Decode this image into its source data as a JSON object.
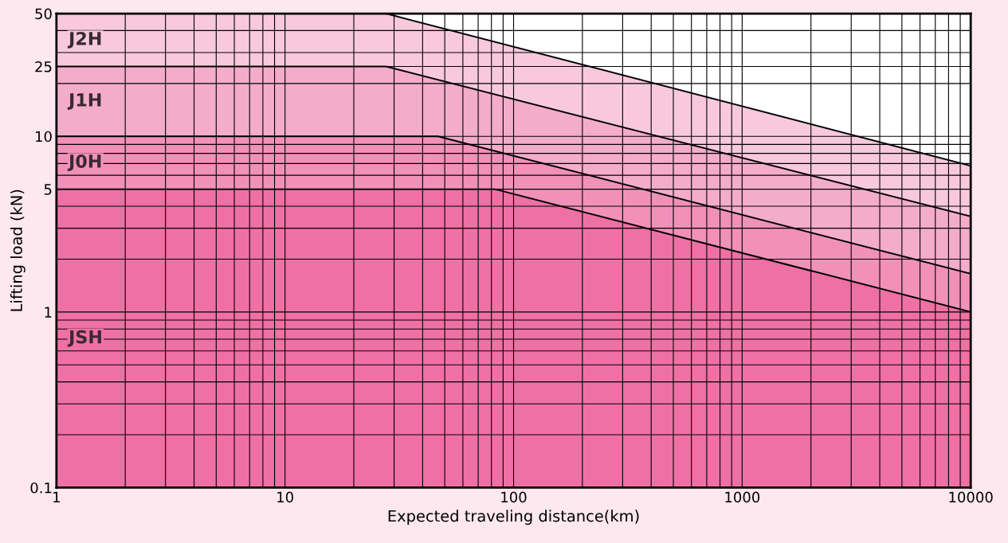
{
  "chart_data": {
    "type": "area",
    "xlabel": "Expected traveling distance(km)",
    "ylabel": "Lifting load (kN)",
    "log": "xy",
    "grid": true,
    "xlim": [
      1,
      10000
    ],
    "xticks": [
      1,
      10,
      100,
      1000,
      10000
    ],
    "ylim": [
      0.1,
      50
    ],
    "yticks": [
      0.1,
      1,
      5,
      10,
      25,
      50
    ],
    "series": [
      {
        "name": "J2H",
        "color": "#f8c9dc",
        "x": [
          1,
          27.7,
          10000
        ],
        "values": [
          50,
          50,
          6.8
        ]
      },
      {
        "name": "J1H",
        "color": "#f4accb",
        "x": [
          1,
          27.7,
          10000
        ],
        "values": [
          25,
          25,
          3.5
        ]
      },
      {
        "name": "J0H",
        "color": "#f191ba",
        "x": [
          1,
          46.7,
          10000
        ],
        "values": [
          10,
          10,
          1.65
        ]
      },
      {
        "name": "JSH",
        "color": "#ef70a4",
        "x": [
          1,
          83,
          10000
        ],
        "values": [
          5,
          5,
          1.0
        ]
      }
    ]
  }
}
